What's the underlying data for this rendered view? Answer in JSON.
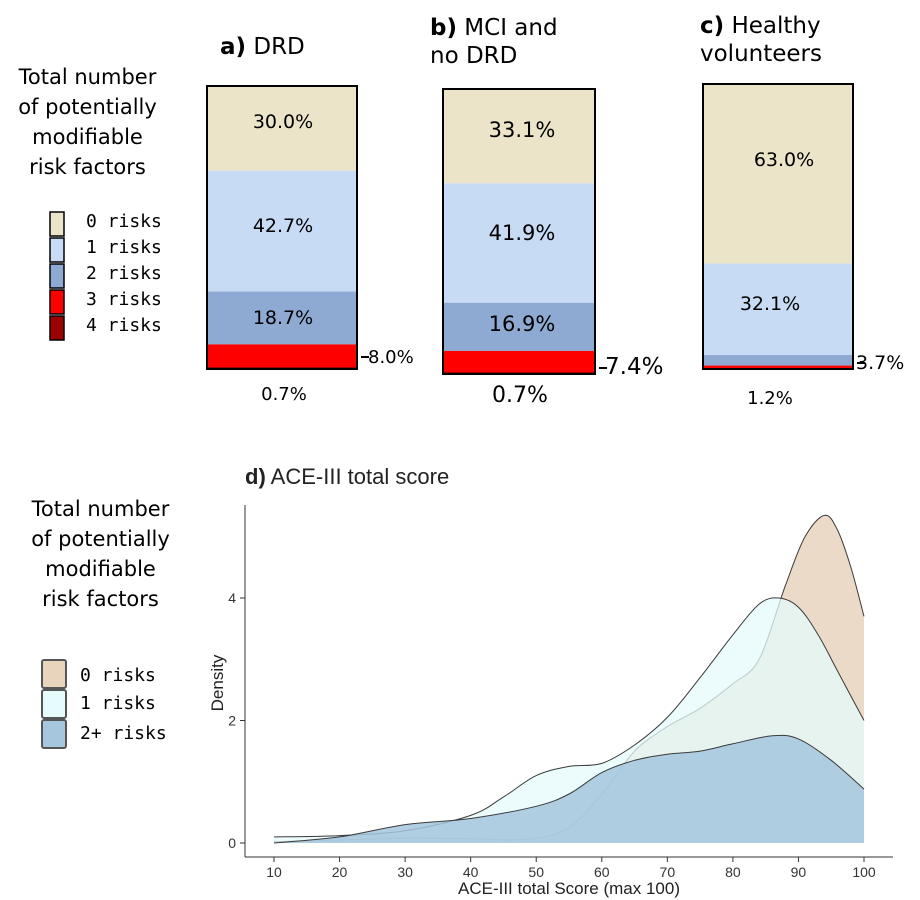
{
  "top_legend": {
    "title": "Total number\nof potentially\nmodifiable\nrisk factors",
    "items": [
      {
        "label": "0 risks",
        "color": "#ebe4c9"
      },
      {
        "label": "1 risks",
        "color": "#c7dbf5"
      },
      {
        "label": "2 risks",
        "color": "#8eaad3"
      },
      {
        "label": "3 risks",
        "color": "#ff0000"
      },
      {
        "label": "4 risks",
        "color": "#9c0000"
      }
    ]
  },
  "bottom_legend": {
    "title": "Total number\nof potentially\nmodifiable\nrisk factors",
    "items": [
      {
        "label": "0 risks",
        "color": "#e8d3bd"
      },
      {
        "label": "1 risks",
        "color": "#e6fbfc"
      },
      {
        "label": "2+ risks",
        "color": "#a5c6dd"
      }
    ]
  },
  "chart_data": [
    {
      "type": "bar",
      "stacked": true,
      "panel": "a)",
      "title": "DRD",
      "categories": [
        "0 risks",
        "1 risks",
        "2 risks",
        "3 risks",
        "4 risks"
      ],
      "values": [
        30.0,
        42.7,
        18.7,
        8.0,
        0.7
      ],
      "labels": [
        "30.0%",
        "42.7%",
        "18.7%",
        "8.0%",
        "0.7%"
      ]
    },
    {
      "type": "bar",
      "stacked": true,
      "panel": "b)",
      "title": "MCI and\nno DRD",
      "categories": [
        "0 risks",
        "1 risks",
        "2 risks",
        "3 risks",
        "4 risks"
      ],
      "values": [
        33.1,
        41.9,
        16.9,
        7.4,
        0.7
      ],
      "labels": [
        "33.1%",
        "41.9%",
        "16.9%",
        "7.4%",
        "0.7%"
      ]
    },
    {
      "type": "bar",
      "stacked": true,
      "panel": "c)",
      "title": "Healthy\nvolunteers",
      "categories": [
        "0 risks",
        "1 risks",
        "2 risks",
        "3 risks",
        "4 risks"
      ],
      "values": [
        63.0,
        32.1,
        3.7,
        1.2,
        0.0
      ],
      "labels": [
        "63.0%",
        "32.1%",
        "3.7%",
        "1.2%",
        ""
      ]
    },
    {
      "type": "area",
      "panel": "d)",
      "title": "ACE-III total score",
      "xlabel": "ACE-III total Score (max 100)",
      "ylabel": "Density",
      "xlim": [
        8,
        102
      ],
      "ylim": [
        0,
        5.5
      ],
      "xticks": [
        10,
        20,
        30,
        40,
        50,
        60,
        70,
        80,
        90,
        100
      ],
      "yticks": [
        0,
        2,
        4
      ],
      "grid": false,
      "series": [
        {
          "name": "0 risks",
          "color": "#e8d3bd",
          "x": [
            10,
            20,
            30,
            40,
            45,
            50,
            55,
            60,
            65,
            70,
            75,
            80,
            84,
            88,
            91,
            94,
            96,
            98,
            100
          ],
          "y": [
            0.02,
            0.05,
            0.08,
            0.07,
            0.05,
            0.08,
            0.25,
            0.8,
            1.5,
            1.9,
            2.2,
            2.6,
            3.0,
            4.2,
            5.0,
            5.35,
            5.1,
            4.5,
            3.7
          ]
        },
        {
          "name": "1 risks",
          "color": "#e6fbfc",
          "x": [
            10,
            20,
            30,
            40,
            45,
            50,
            55,
            60,
            65,
            70,
            75,
            80,
            84,
            87,
            90,
            93,
            96,
            100
          ],
          "y": [
            0.1,
            0.12,
            0.2,
            0.45,
            0.75,
            1.1,
            1.25,
            1.3,
            1.6,
            2.05,
            2.7,
            3.4,
            3.9,
            4.0,
            3.85,
            3.4,
            2.8,
            2.0
          ]
        },
        {
          "name": "2+ risks",
          "color": "#a5c6dd",
          "x": [
            10,
            20,
            30,
            40,
            50,
            55,
            60,
            65,
            70,
            75,
            80,
            86,
            90,
            95,
            100
          ],
          "y": [
            0.0,
            0.1,
            0.3,
            0.4,
            0.6,
            0.8,
            1.15,
            1.35,
            1.45,
            1.5,
            1.62,
            1.75,
            1.7,
            1.35,
            0.88
          ]
        }
      ]
    }
  ]
}
